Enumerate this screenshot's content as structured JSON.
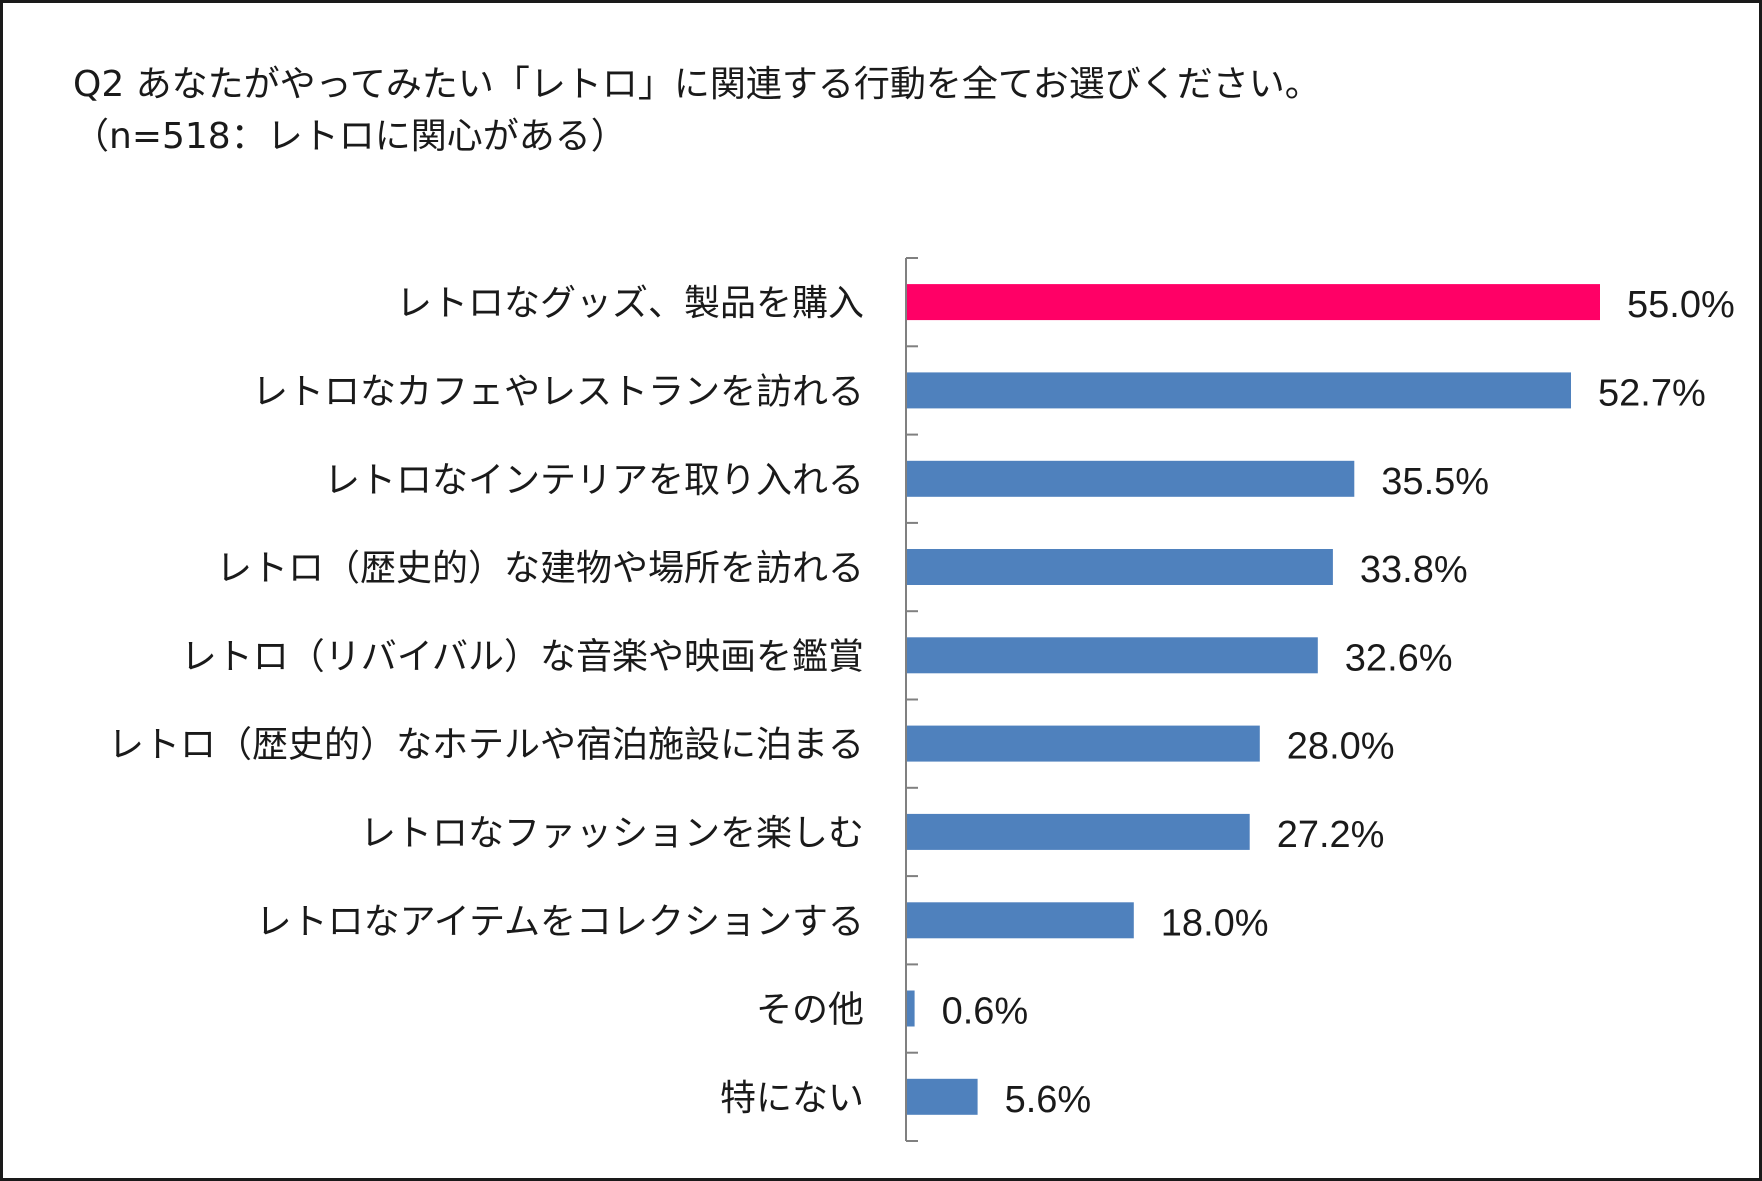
{
  "chart_data": {
    "type": "bar",
    "orientation": "horizontal",
    "title": "Q2 あなたがやってみたい「レトロ」に関連する行動を全てお選びください。",
    "subtitle": "（n=518：レトロに関心がある）",
    "categories": [
      "レトロなグッズ、製品を購入",
      "レトロなカフェやレストランを訪れる",
      "レトロなインテリアを取り入れる",
      "レトロ（歴史的）な建物や場所を訪れる",
      "レトロ（リバイバル）な音楽や映画を鑑賞",
      "レトロ（歴史的）なホテルや宿泊施設に泊まる",
      "レトロなファッションを楽しむ",
      "レトロなアイテムをコレクションする",
      "その他",
      "特にない"
    ],
    "values": [
      55.0,
      52.7,
      35.5,
      33.8,
      32.6,
      28.0,
      27.2,
      18.0,
      0.6,
      5.6
    ],
    "value_labels": [
      "55.0%",
      "52.7%",
      "35.5%",
      "33.8%",
      "32.6%",
      "28.0%",
      "27.2%",
      "18.0%",
      "0.6%",
      "5.6%"
    ],
    "unit": "%",
    "xlim": [
      0,
      60
    ],
    "grid": false,
    "legend": "none",
    "colors": {
      "highlight": "#FF0066",
      "default": "#4F81BD",
      "axis": "#808080",
      "text": "#1a1a1a",
      "border": "#1a1a1a"
    },
    "highlight_index": 0
  }
}
